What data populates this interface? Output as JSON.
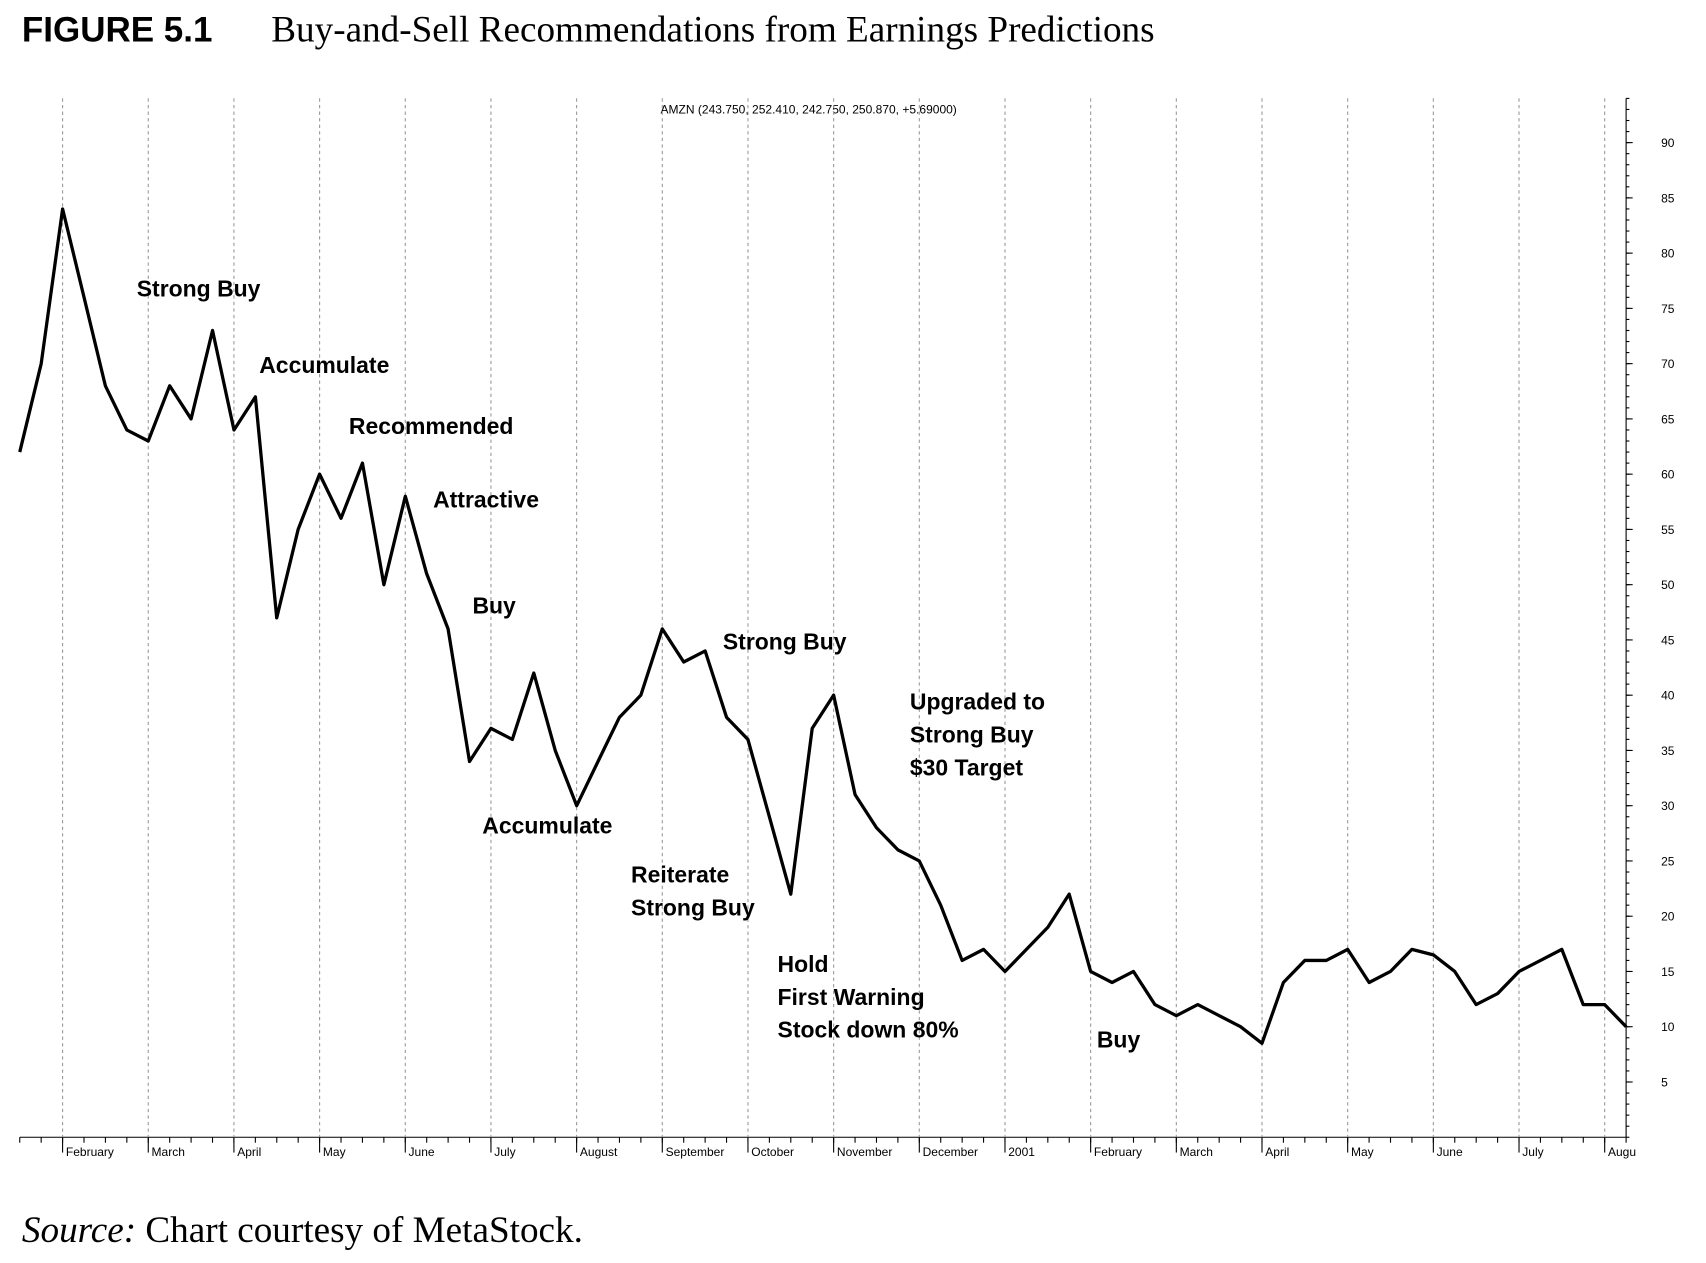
{
  "chart_data": {
    "type": "line",
    "figure_label": "FIGURE 5.1",
    "title": "Buy-and-Sell Recommendations from Earnings Predictions",
    "subtitle": "AMZN (243.750, 252.410, 242.750, 250.870, +5.69000)",
    "source_label": "Source:",
    "source_text": "Chart courtesy of MetaStock.",
    "categories": [
      null,
      null,
      "February",
      null,
      null,
      null,
      "March",
      null,
      null,
      null,
      "April",
      null,
      null,
      null,
      "May",
      null,
      null,
      null,
      "June",
      null,
      null,
      null,
      "July",
      null,
      null,
      null,
      "August",
      null,
      null,
      null,
      "September",
      null,
      null,
      null,
      "October",
      null,
      null,
      null,
      "November",
      null,
      null,
      null,
      "December",
      null,
      null,
      null,
      "2001",
      null,
      null,
      null,
      "February",
      null,
      null,
      null,
      "March",
      null,
      null,
      null,
      "April",
      null,
      null,
      null,
      "May",
      null,
      null,
      null,
      "June",
      null,
      null,
      null,
      "July",
      null,
      null,
      null,
      "Augu",
      null
    ],
    "series": [
      {
        "name": "AMZN",
        "color": "#000000",
        "values": [
          62,
          70,
          84,
          76,
          68,
          64,
          63,
          68,
          65,
          73,
          64,
          67,
          47,
          55,
          60,
          56,
          61,
          50,
          58,
          51,
          46,
          34,
          37,
          36,
          42,
          35,
          30,
          34,
          38,
          40,
          46,
          43,
          44,
          38,
          36,
          29,
          22,
          37,
          40,
          31,
          28,
          26,
          25,
          21,
          16,
          17,
          15,
          17,
          19,
          22,
          15,
          14,
          15,
          12,
          11,
          12,
          11,
          10,
          8.5,
          14,
          16,
          16,
          17,
          14,
          15,
          17,
          16.5,
          15,
          12,
          13,
          15,
          16,
          17,
          12,
          12,
          10
        ]
      }
    ],
    "ylim": [
      0,
      94
    ],
    "yticks": [
      5,
      10,
      15,
      20,
      25,
      30,
      35,
      40,
      45,
      50,
      55,
      60,
      65,
      70,
      75,
      80,
      85,
      90
    ],
    "grid": true,
    "annotations": [
      [
        "Strong Buy"
      ],
      [
        "Accumulate"
      ],
      [
        "Recommended"
      ],
      [
        "Attractive"
      ],
      [
        "Buy"
      ],
      [
        "Accumulate"
      ],
      [
        "Strong Buy"
      ],
      [
        "Upgraded to",
        "Strong Buy",
        "$30 Target"
      ],
      [
        "Reiterate",
        "Strong Buy"
      ],
      [
        "Hold",
        "First Warning",
        "Stock down 80%"
      ],
      [
        "Buy"
      ]
    ]
  }
}
